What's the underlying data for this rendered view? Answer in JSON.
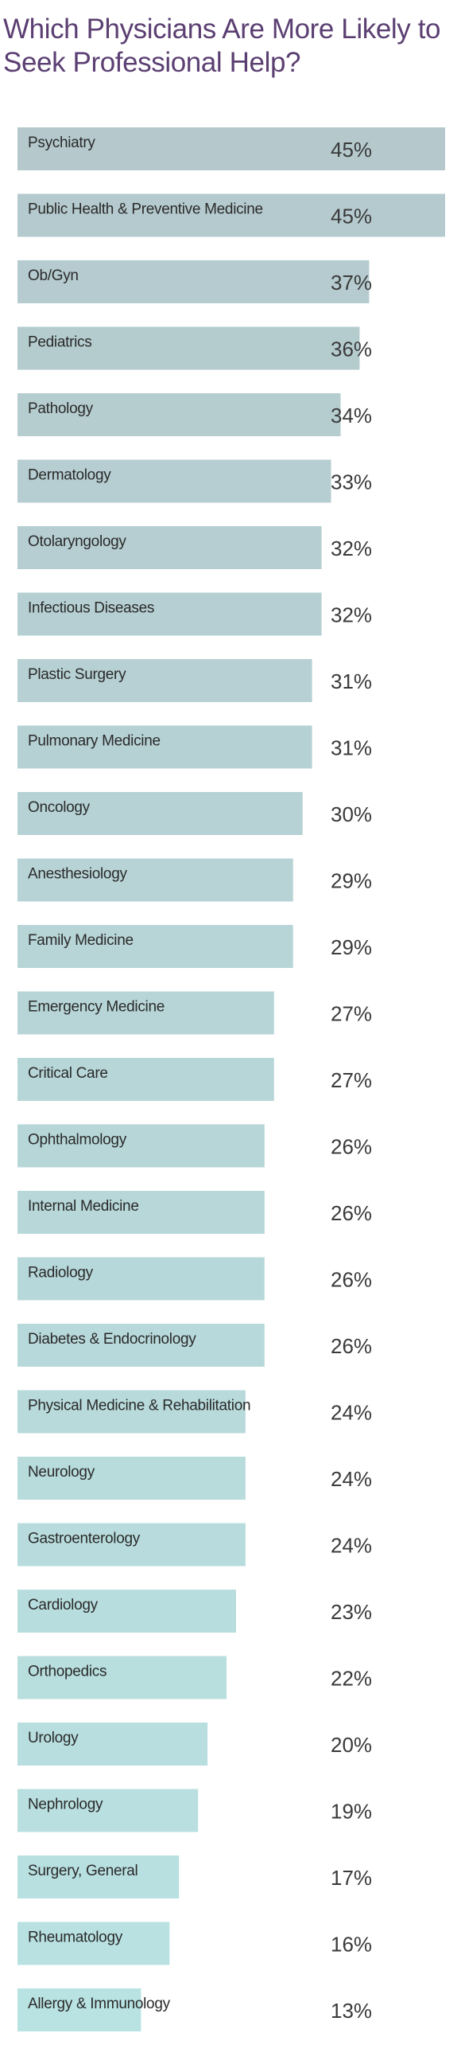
{
  "chart_data": {
    "type": "bar",
    "orientation": "horizontal",
    "title": "Which Physicians Are More Likely to Seek Professional Help?",
    "categories": [
      "Psychiatry",
      "Public Health & Preventive Medicine",
      "Ob/Gyn",
      "Pediatrics",
      "Pathology",
      "Dermatology",
      "Otolaryngology",
      "Infectious Diseases",
      "Plastic Surgery",
      "Pulmonary Medicine",
      "Oncology",
      "Anesthesiology",
      "Family Medicine",
      "Emergency Medicine",
      "Critical Care",
      "Ophthalmology",
      "Internal Medicine",
      "Radiology",
      "Diabetes & Endocrinology",
      "Physical Medicine & Rehabilitation",
      "Neurology",
      "Gastroenterology",
      "Cardiology",
      "Orthopedics",
      "Urology",
      "Nephrology",
      "Surgery, General",
      "Rheumatology",
      "Allergy & Immunology"
    ],
    "values": [
      45,
      45,
      37,
      36,
      34,
      33,
      32,
      32,
      31,
      31,
      30,
      29,
      29,
      27,
      27,
      26,
      26,
      26,
      26,
      24,
      24,
      24,
      23,
      22,
      20,
      19,
      17,
      16,
      13
    ],
    "value_labels": [
      "45%",
      "45%",
      "37%",
      "36%",
      "34%",
      "33%",
      "32%",
      "32%",
      "31%",
      "31%",
      "30%",
      "29%",
      "29%",
      "27%",
      "27%",
      "26%",
      "26%",
      "26%",
      "26%",
      "24%",
      "24%",
      "24%",
      "23%",
      "22%",
      "20%",
      "19%",
      "17%",
      "16%",
      "13%"
    ],
    "xlabel": "",
    "ylabel": "",
    "xlim": [
      0,
      45
    ],
    "grid": false,
    "legend": "none"
  },
  "colors": {
    "title": "#5b3f72",
    "bar_top": "#b5c9cd",
    "bar_bottom": "#b9e2e2",
    "label_text": "#2a2a2a",
    "value_text": "#3a3a3a"
  }
}
